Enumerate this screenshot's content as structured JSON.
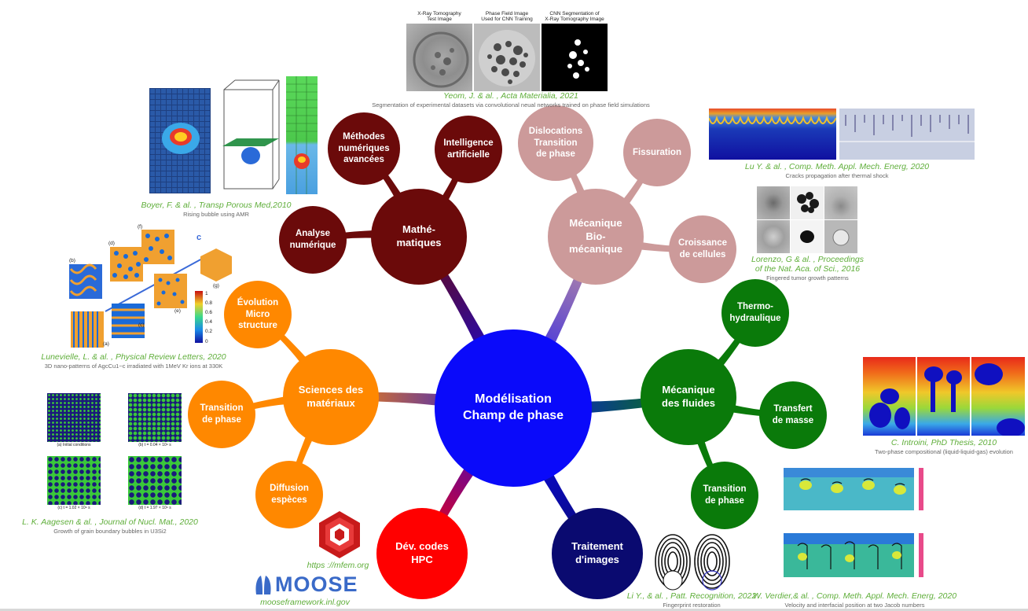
{
  "diagram": {
    "center": {
      "label": "Modélisation\nChamp de phase",
      "color": "#0a0afa"
    },
    "branches": [
      {
        "id": "maths",
        "label": "Mathé-\nmatiques",
        "color": "#6b0a0a",
        "children": [
          "Analyse\nnumérique",
          "Méthodes\nnumériques\navancées",
          "Intelligence\nartificielle"
        ]
      },
      {
        "id": "bio",
        "label": "Mécanique\nBio-\nmécanique",
        "color": "#cc9a9a",
        "children": [
          "Dislocations\nTransition\nde phase",
          "Fissuration",
          "Croissance\nde cellules"
        ]
      },
      {
        "id": "fluides",
        "label": "Mécanique\ndes fluides",
        "color": "#0a7a0a",
        "children": [
          "Thermo-\nhydraulique",
          "Transfert\nde masse",
          "Transition\nde phase"
        ]
      },
      {
        "id": "materiaux",
        "label": "Sciences des\nmatériaux",
        "color": "#ff8800",
        "children": [
          "Évolution\nMicro\nstructure",
          "Transition\nde phase",
          "Diffusion\nespèces"
        ]
      },
      {
        "id": "hpc",
        "label": "Dév. codes\nHPC",
        "color": "#ff0000",
        "children": []
      },
      {
        "id": "images",
        "label": "Traitement\nd'images",
        "color": "#0a0a70",
        "children": []
      }
    ]
  },
  "references": {
    "yeom": {
      "citation": "Yeom, J. & al. , Acta Materialia, 2021",
      "description": "Segmentation of experimental datasets via convolutional neual networks trained on phase field simulations",
      "panel_titles": [
        "X-Ray Tomography\nTest Image",
        "Phase Field Image\nUsed for CNN Training",
        "CNN Segmentation of\nX-Ray Tomography Image"
      ]
    },
    "boyer": {
      "citation": "Boyer, F. & al. , Transp Porous Med,2010",
      "description": "Rising bubble using AMR"
    },
    "lu_crack": {
      "citation": "Lu Y. & al. , Comp. Meth. Appl. Mech. Energ, 2020",
      "description": "Cracks propagation after thermal shock"
    },
    "lorenzo": {
      "citation": "Lorenzo, G & al. , Proceedings\nof the Nat. Aca. of Sci., 2016",
      "description": "Fingered tumor growth patterns"
    },
    "lunevielle": {
      "citation": "Lunevielle, L. & al. , Physical Review Letters, 2020",
      "description": "3D nano-patterns of AgcCu1−c irradiated with 1MeV Kr ions at 330K",
      "axis_label": "c",
      "panel_labels": [
        "(a)",
        "(b)",
        "(c)",
        "(d)",
        "(e)",
        "(f)",
        "(g)"
      ],
      "colorbar_ticks": [
        "1",
        "0.8",
        "0.6",
        "0.4",
        "0.2",
        "0"
      ]
    },
    "aagesen": {
      "citation": "L. K. Aagesen & al. , Journal of Nucl. Mat., 2020",
      "description": "Growth of grain boundary bubbles in U3Si2",
      "panel_captions": [
        "(a) Initial conditions",
        "(b) t = 0.04 × 10⁹ s",
        "(c) t = 1.02 × 10⁹ s",
        "(d) t = 1.97 × 10⁹ s"
      ]
    },
    "introini": {
      "citation": "C. Introini, PhD Thesis, 2010",
      "description": "Two-phase compositional (liquid-liquid-gas) evolution"
    },
    "verdier": {
      "citation": "W. Verdier,& al. , Comp. Meth. Appl. Mech. Energ, 2020",
      "description": "Velocity and interfacial position at two Jacob numbers"
    },
    "lu_finger": {
      "citation": "Li Y., & al. , Patt. Recognition, 2022",
      "description": "Fingerprint restoration"
    },
    "mfem": {
      "url": "https ://mfem.org"
    },
    "moose": {
      "logo_text": "MOOSE",
      "url": "mooseframework.inl.gov"
    }
  }
}
